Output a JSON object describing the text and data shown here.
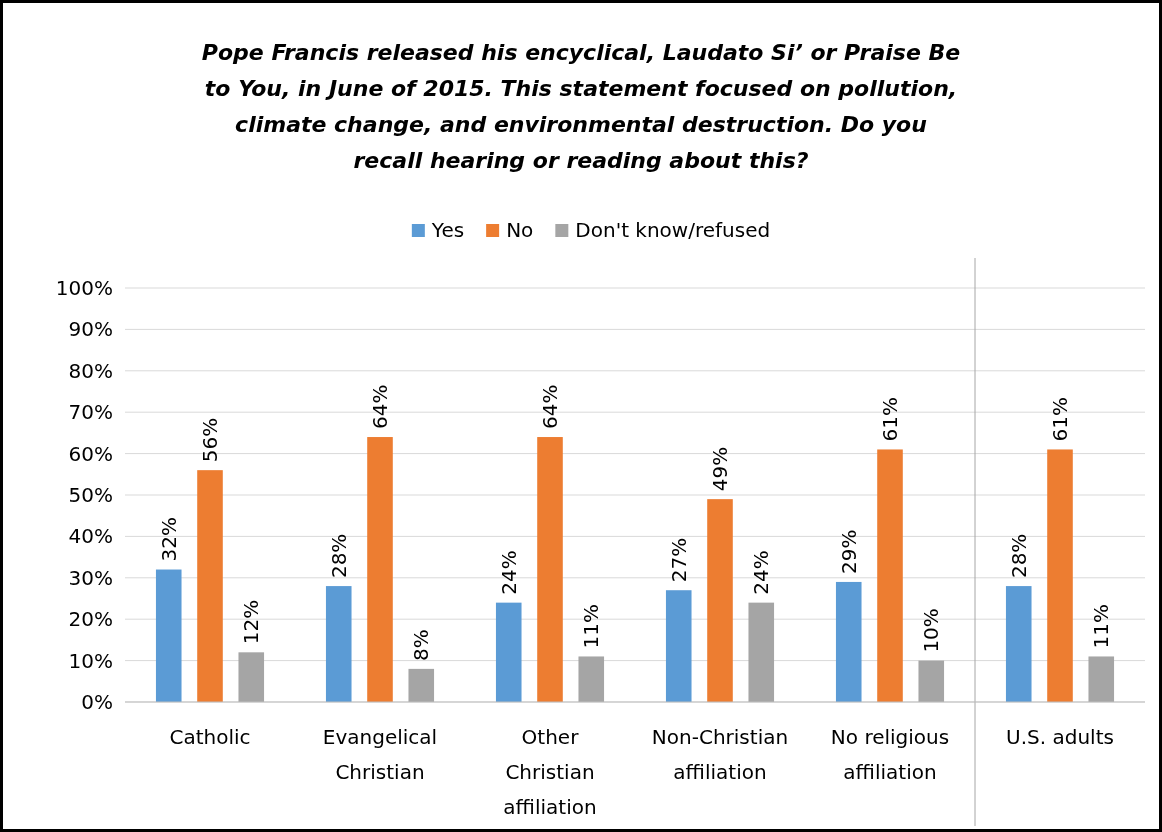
{
  "chart_data": {
    "type": "bar",
    "title": "Pope Francis released his encyclical, Laudato Si’ or Praise Be to You, in June of 2015. This statement focused on pollution, climate change, and environmental destruction. Do you recall hearing or reading about this?",
    "categories": [
      "Catholic",
      "Evangelical Christian",
      "Other Christian affiliation",
      "Non-Christian affiliation",
      "No religious affiliation",
      "U.S. adults"
    ],
    "series": [
      {
        "name": "Yes",
        "color": "#5b9bd5",
        "values": [
          32,
          28,
          24,
          27,
          29,
          28
        ],
        "value_labels": [
          "32%",
          "28%",
          "24%",
          "27%",
          "29%",
          "28%"
        ]
      },
      {
        "name": "No",
        "color": "#ed7d31",
        "values": [
          56,
          64,
          64,
          49,
          61,
          61
        ],
        "value_labels": [
          "56%",
          "64%",
          "64%",
          "49%",
          "61%",
          "61%"
        ]
      },
      {
        "name": "Don't know/refused",
        "color": "#a5a5a5",
        "values": [
          12,
          8,
          11,
          24,
          10,
          11
        ],
        "value_labels": [
          "12%",
          "8%",
          "11%",
          "24%",
          "10%",
          "11%"
        ]
      }
    ],
    "ylim": [
      0,
      100
    ],
    "yticks": [
      {
        "value": 0,
        "label": "0%"
      },
      {
        "value": 10,
        "label": "10%"
      },
      {
        "value": 20,
        "label": "20%"
      },
      {
        "value": 30,
        "label": "30%"
      },
      {
        "value": 40,
        "label": "40%"
      },
      {
        "value": 50,
        "label": "50%"
      },
      {
        "value": 60,
        "label": "60%"
      },
      {
        "value": 70,
        "label": "70%"
      },
      {
        "value": 80,
        "label": "80%"
      },
      {
        "value": 90,
        "label": "90%"
      },
      {
        "value": 100,
        "label": "100%"
      }
    ],
    "grid": "y",
    "legend": "top",
    "ref_lines": [
      {
        "axis": "x",
        "value": "U.S. adults",
        "color": "#a6a6a6"
      }
    ]
  }
}
